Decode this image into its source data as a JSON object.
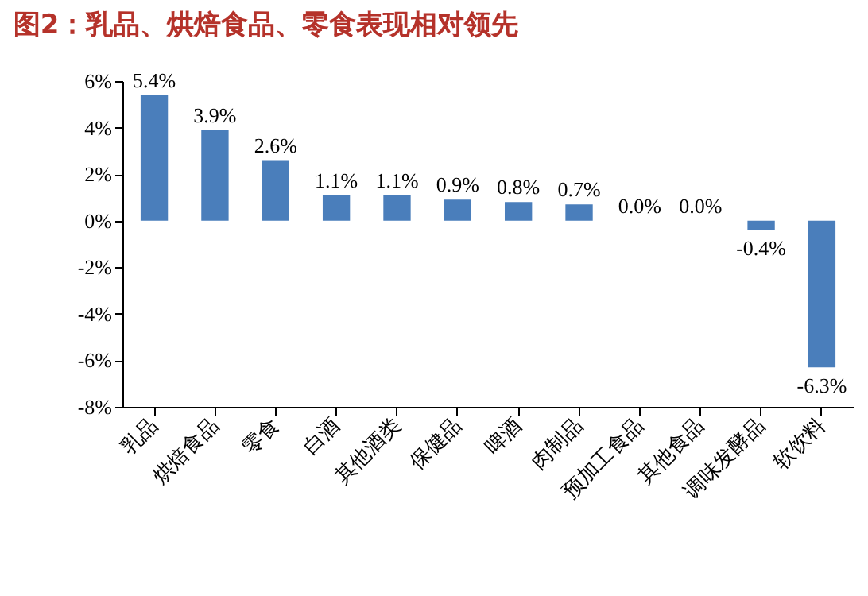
{
  "chart_data": {
    "type": "bar",
    "title": "图2：乳品、烘焙食品、零食表现相对领先",
    "categories": [
      "乳品",
      "烘焙食品",
      "零食",
      "白酒",
      "其他酒类",
      "保健品",
      "啤酒",
      "肉制品",
      "预加工食品",
      "其他食品",
      "调味发酵品",
      "软饮料"
    ],
    "values": [
      5.4,
      3.9,
      2.6,
      1.1,
      1.1,
      0.9,
      0.8,
      0.7,
      0.0,
      0.0,
      -0.4,
      -6.3
    ],
    "value_labels": [
      "5.4%",
      "3.9%",
      "2.6%",
      "1.1%",
      "1.1%",
      "0.9%",
      "0.8%",
      "0.7%",
      "0.0%",
      "0.0%",
      "-0.4%",
      "-6.3%"
    ],
    "color": "#4a7ebb",
    "ylim": [
      -8,
      6
    ],
    "yticks": [
      {
        "value": -8,
        "label": "-8%"
      },
      {
        "value": -6,
        "label": "-6%"
      },
      {
        "value": -4,
        "label": "-4%"
      },
      {
        "value": -2,
        "label": "-2%"
      },
      {
        "value": 0,
        "label": "0%"
      },
      {
        "value": 2,
        "label": "2%"
      },
      {
        "value": 4,
        "label": "4%"
      },
      {
        "value": 6,
        "label": "6%"
      }
    ],
    "grid": false
  }
}
